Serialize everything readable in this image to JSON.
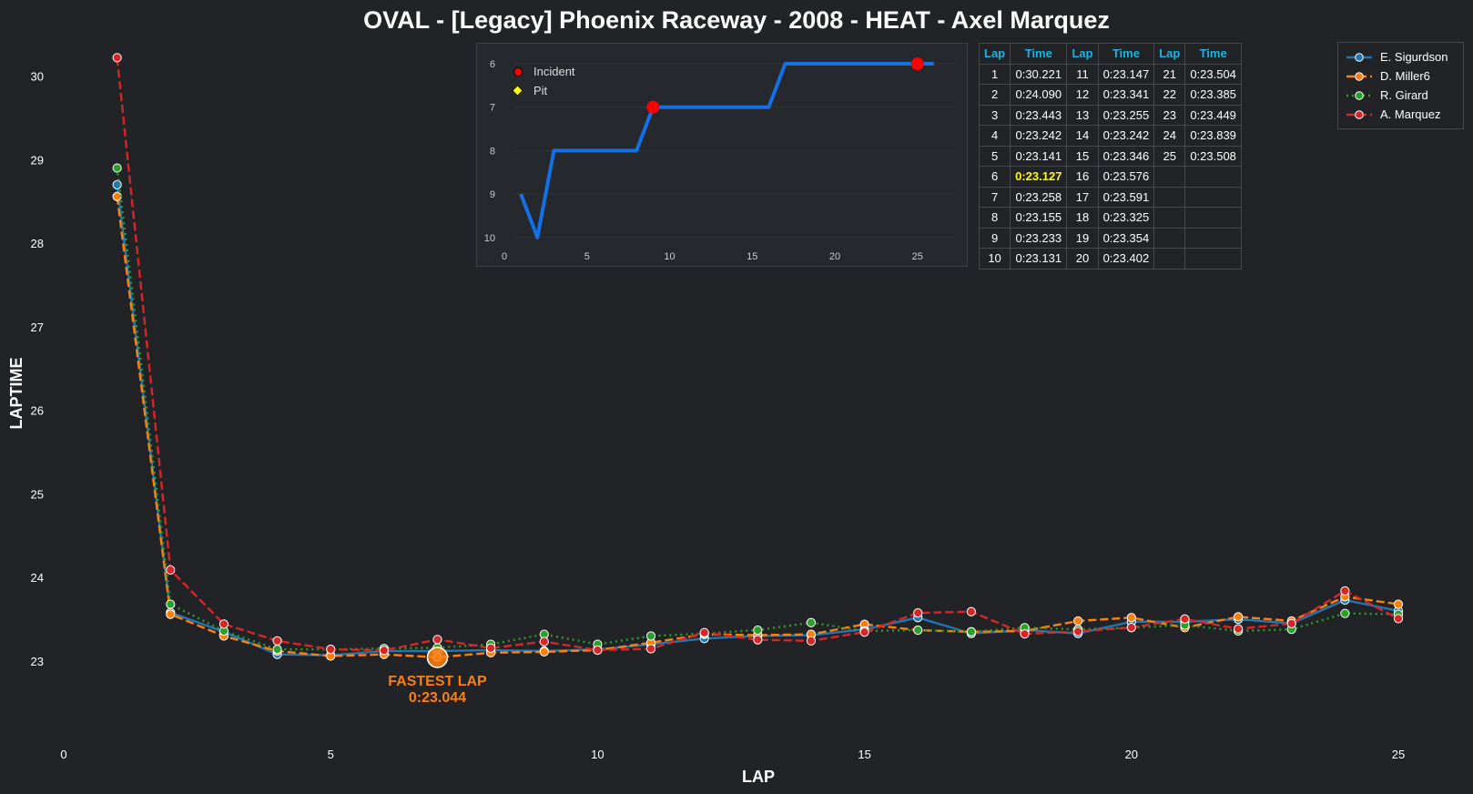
{
  "chart_data": [
    {
      "type": "line",
      "title": "OVAL - [Legacy] Phoenix Raceway - 2008 - HEAT - Axel Marquez",
      "xlabel": "LAP",
      "ylabel": "LAPTIME",
      "xlim": [
        0,
        25
      ],
      "ylim": [
        22,
        30.3
      ],
      "x_ticks": [
        0,
        5,
        10,
        15,
        20,
        25
      ],
      "y_ticks": [
        23,
        24,
        25,
        26,
        27,
        28,
        29,
        30
      ],
      "grid": false,
      "legend_position": "top-right",
      "x": [
        1,
        2,
        3,
        4,
        5,
        6,
        7,
        8,
        9,
        10,
        11,
        12,
        13,
        14,
        15,
        16,
        17,
        18,
        19,
        20,
        21,
        22,
        23,
        24,
        25
      ],
      "series": [
        {
          "name": "E. Sigurdson",
          "color": "#1f77b4",
          "style": "solid",
          "values": [
            28.7,
            23.58,
            23.35,
            23.08,
            23.07,
            23.12,
            23.12,
            23.13,
            23.12,
            23.14,
            23.2,
            23.27,
            23.3,
            23.31,
            23.38,
            23.52,
            23.33,
            23.37,
            23.33,
            23.47,
            23.47,
            23.5,
            23.45,
            23.73,
            23.6
          ]
        },
        {
          "name": "D. Miller6",
          "color": "#ff7f0e",
          "style": "dashed",
          "values": [
            28.56,
            23.56,
            23.3,
            23.12,
            23.06,
            23.08,
            23.044,
            23.1,
            23.11,
            23.13,
            23.22,
            23.32,
            23.31,
            23.32,
            23.44,
            23.37,
            23.35,
            23.36,
            23.48,
            23.52,
            23.4,
            23.53,
            23.48,
            23.77,
            23.68
          ]
        },
        {
          "name": "R. Girard",
          "color": "#2ca02c",
          "style": "dotted",
          "values": [
            28.9,
            23.68,
            23.36,
            23.14,
            23.14,
            23.15,
            23.16,
            23.2,
            23.32,
            23.2,
            23.3,
            23.33,
            23.37,
            23.46,
            23.36,
            23.37,
            23.35,
            23.4,
            23.38,
            23.4,
            23.43,
            23.36,
            23.38,
            23.57,
            23.56
          ]
        },
        {
          "name": "A. Marquez",
          "color": "#d62728",
          "style": "dashed",
          "values": [
            30.221,
            24.09,
            23.443,
            23.242,
            23.141,
            23.127,
            23.258,
            23.155,
            23.233,
            23.131,
            23.147,
            23.341,
            23.255,
            23.242,
            23.346,
            23.576,
            23.591,
            23.325,
            23.354,
            23.402,
            23.504,
            23.385,
            23.449,
            23.839,
            23.508
          ]
        }
      ],
      "annotation": {
        "label": "FASTEST LAP",
        "value": "0:23.044",
        "x": 7,
        "y": 23.044,
        "color": "#ff7f0e"
      }
    },
    {
      "type": "line",
      "title": "",
      "xlim": [
        0,
        27.5
      ],
      "ylim": [
        10,
        6
      ],
      "x_ticks": [
        0,
        5,
        10,
        15,
        20,
        25
      ],
      "y_ticks": [
        6,
        7,
        8,
        9,
        10
      ],
      "color": "#1470e6",
      "x": [
        1,
        2,
        3,
        4,
        5,
        6,
        7,
        8,
        9,
        10,
        11,
        12,
        13,
        14,
        15,
        16,
        17,
        18,
        19,
        20,
        21,
        22,
        23,
        24,
        25,
        26
      ],
      "values": [
        9,
        10,
        8,
        8,
        8,
        8,
        8,
        8,
        7,
        7,
        7,
        7,
        7,
        7,
        7,
        7,
        6,
        6,
        6,
        6,
        6,
        6,
        6,
        6,
        6,
        6
      ],
      "incidents": [
        {
          "x": 9,
          "y": 7
        },
        {
          "x": 25,
          "y": 6
        }
      ],
      "legend": [
        {
          "name": "Incident",
          "marker": "circle",
          "color": "#ff0000"
        },
        {
          "name": "Pit",
          "marker": "diamond",
          "color": "#ffff00"
        }
      ]
    }
  ],
  "lap_table": {
    "headers": [
      "Lap",
      "Time",
      "Lap",
      "Time",
      "Lap",
      "Time"
    ],
    "rows": [
      [
        "1",
        "0:30.221",
        "11",
        "0:23.147",
        "21",
        "0:23.504"
      ],
      [
        "2",
        "0:24.090",
        "12",
        "0:23.341",
        "22",
        "0:23.385"
      ],
      [
        "3",
        "0:23.443",
        "13",
        "0:23.255",
        "23",
        "0:23.449"
      ],
      [
        "4",
        "0:23.242",
        "14",
        "0:23.242",
        "24",
        "0:23.839"
      ],
      [
        "5",
        "0:23.141",
        "15",
        "0:23.346",
        "25",
        "0:23.508"
      ],
      [
        "6",
        "0:23.127",
        "16",
        "0:23.576",
        "",
        ""
      ],
      [
        "7",
        "0:23.258",
        "17",
        "0:23.591",
        "",
        ""
      ],
      [
        "8",
        "0:23.155",
        "18",
        "0:23.325",
        "",
        ""
      ],
      [
        "9",
        "0:23.233",
        "19",
        "0:23.354",
        "",
        ""
      ],
      [
        "10",
        "0:23.131",
        "20",
        "0:23.402",
        "",
        ""
      ]
    ],
    "best_lap_time": "0:23.127"
  },
  "colors": {
    "background": "#212326",
    "header_cyan": "#18b4e8",
    "best_yellow": "#ffff00"
  }
}
